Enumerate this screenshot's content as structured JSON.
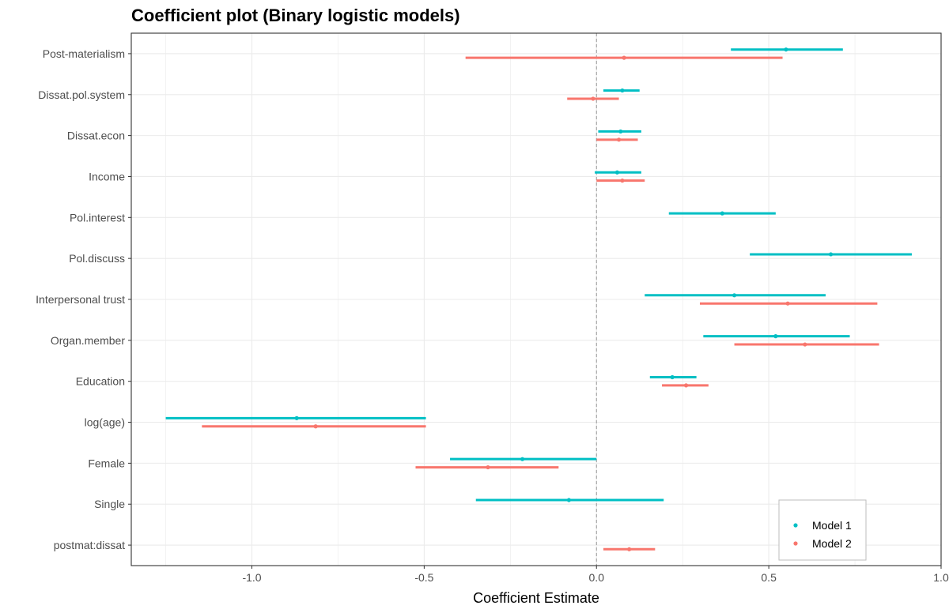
{
  "chart_data": {
    "type": "coefficient",
    "title": "Coefficient plot (Binary logistic models)",
    "xlabel": "Coefficient Estimate",
    "ylabel": "",
    "xlim": [
      -1.35,
      1.0
    ],
    "x_ticks": [
      -1.0,
      -0.5,
      0.0,
      0.5,
      1.0
    ],
    "x_tick_labels": [
      "-1.0",
      "-0.5",
      "0.0",
      "0.5",
      "1.0"
    ],
    "reference_line": 0,
    "grid": true,
    "legend_position": "bottom-right",
    "categories": [
      "Post-materialism",
      "Dissat.pol.system",
      "Dissat.econ",
      "Income",
      "Pol.interest",
      "Pol.discuss",
      "Interpersonal trust",
      "Organ.member",
      "Education",
      "log(age)",
      "Female",
      "Single",
      "postmat:dissat"
    ],
    "series": [
      {
        "name": "Model 1",
        "color": "#00BFC4",
        "estimates": [
          0.55,
          0.075,
          0.07,
          0.06,
          0.365,
          0.68,
          0.4,
          0.52,
          0.22,
          -0.87,
          -0.215,
          -0.08,
          null
        ],
        "lower": [
          0.39,
          0.02,
          0.005,
          -0.005,
          0.21,
          0.445,
          0.14,
          0.31,
          0.155,
          -1.25,
          -0.425,
          -0.35,
          null
        ],
        "upper": [
          0.715,
          0.125,
          0.13,
          0.13,
          0.52,
          0.915,
          0.665,
          0.735,
          0.29,
          -0.495,
          0.0,
          0.195,
          null
        ]
      },
      {
        "name": "Model 2",
        "color": "#F8766D",
        "estimates": [
          0.08,
          -0.01,
          0.065,
          0.075,
          null,
          null,
          0.555,
          0.605,
          0.26,
          -0.815,
          -0.315,
          null,
          0.095
        ],
        "lower": [
          -0.38,
          -0.085,
          0.0,
          0.0,
          null,
          null,
          0.3,
          0.4,
          0.19,
          -1.145,
          -0.525,
          null,
          0.02
        ],
        "upper": [
          0.54,
          0.065,
          0.12,
          0.14,
          null,
          null,
          0.815,
          0.82,
          0.325,
          -0.495,
          -0.11,
          null,
          0.17
        ]
      }
    ]
  }
}
